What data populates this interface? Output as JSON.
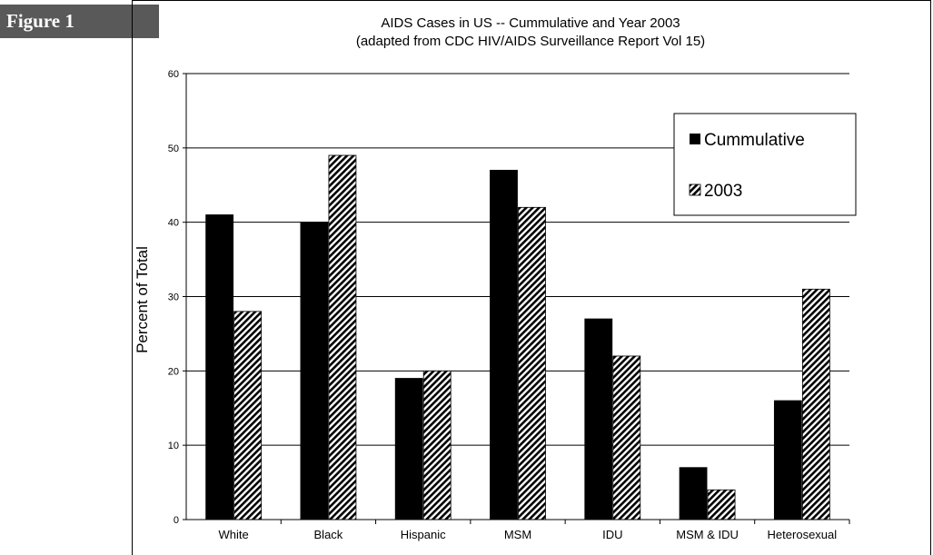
{
  "figure_label": "Figure 1",
  "chart_data": {
    "type": "bar",
    "title": "AIDS Cases in US -- Cummulative and Year 2003",
    "subtitle": "(adapted from CDC HIV/AIDS Surveillance Report Vol 15)",
    "xlabel": "",
    "ylabel": "Percent of Total",
    "categories": [
      "White",
      "Black",
      "Hispanic",
      "MSM",
      "IDU",
      "MSM & IDU",
      "Heterosexual"
    ],
    "series": [
      {
        "name": "Cummulative",
        "values": [
          41,
          40,
          19,
          47,
          27,
          7,
          16
        ],
        "color": "#000000",
        "pattern": "solid"
      },
      {
        "name": "2003",
        "values": [
          28,
          49,
          20,
          42,
          22,
          4,
          31
        ],
        "color": "#000000",
        "pattern": "diagonal-hatch"
      }
    ],
    "ylim": [
      0,
      60
    ],
    "yticks": [
      "0",
      "10",
      "20",
      "30",
      "40",
      "50",
      "60"
    ],
    "grid": true,
    "legend_position": "top-right"
  }
}
